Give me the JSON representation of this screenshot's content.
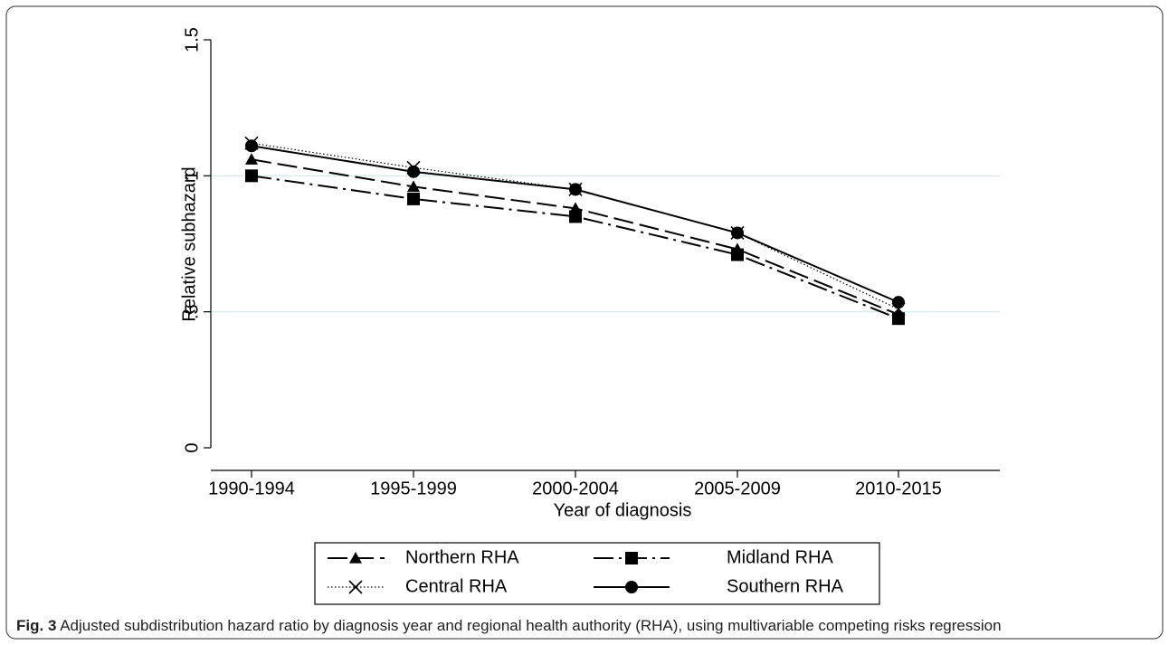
{
  "chart_data": {
    "type": "line",
    "categories": [
      "1990-1994",
      "1995-1999",
      "2000-2004",
      "2005-2009",
      "2010-2015"
    ],
    "x_label": "Year of diagnosis",
    "y_label": "Relative subhazard",
    "ylim": [
      0,
      1.5
    ],
    "yticks": [
      0,
      {
        "value": 0.5,
        "label": ".5"
      },
      1,
      1.5
    ],
    "grid": true,
    "series": [
      {
        "name": "Northern RHA",
        "color": "#000000",
        "dash": "long-dash",
        "marker": "triangle",
        "values": [
          1.06,
          0.96,
          0.88,
          0.73,
          0.49
        ]
      },
      {
        "name": "Midland RHA",
        "color": "#000000",
        "dash": "dash-dot",
        "marker": "square",
        "values": [
          1.0,
          0.915,
          0.85,
          0.71,
          0.475
        ]
      },
      {
        "name": "Central RHA",
        "color": "#000000",
        "dash": "dotted",
        "marker": "cross",
        "values": [
          1.12,
          1.03,
          0.95,
          0.79,
          0.51
        ]
      },
      {
        "name": "Southern RHA",
        "color": "#000000",
        "dash": "solid",
        "marker": "circle",
        "values": [
          1.11,
          1.015,
          0.95,
          0.79,
          0.535
        ]
      }
    ]
  },
  "caption": {
    "label": "Fig. 3",
    "text": " Adjusted subdistribution hazard ratio by diagnosis year and regional health authority (RHA), using multivariable competing risks regression"
  }
}
